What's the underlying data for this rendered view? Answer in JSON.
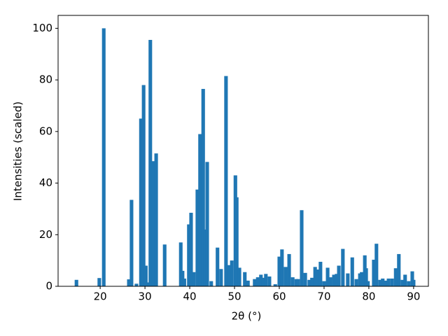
{
  "chart_data": {
    "type": "bar",
    "xlabel": "2θ (°)",
    "ylabel": "Intensities (scaled)",
    "color": "#1f77b4",
    "x": [
      14.7,
      19.8,
      20.8,
      26.4,
      27.0,
      28.1,
      29.1,
      29.7,
      30.2,
      30.6,
      31.2,
      31.9,
      32.5,
      34.4,
      38.0,
      38.4,
      38.8,
      39.8,
      40.3,
      40.9,
      41.7,
      42.3,
      43.0,
      43.4,
      43.9,
      44.8,
      46.2,
      47.0,
      48.1,
      48.8,
      49.4,
      50.2,
      50.5,
      51.1,
      52.3,
      53.0,
      54.5,
      55.2,
      55.9,
      56.4,
      57.0,
      57.8,
      59.1,
      60.0,
      60.6,
      61.4,
      62.2,
      63.0,
      63.8,
      64.2,
      65.0,
      65.8,
      66.7,
      67.3,
      68.0,
      68.6,
      69.2,
      70.0,
      70.8,
      71.4,
      72.2,
      72.8,
      73.3,
      74.2,
      75.3,
      76.3,
      77.2,
      78.0,
      78.4,
      79.1,
      79.4,
      79.8,
      81.1,
      81.7,
      82.5,
      83.1,
      83.8,
      84.4,
      85.2,
      86.0,
      86.7,
      87.5,
      88.1,
      88.9,
      89.7,
      90.0
    ],
    "values": [
      2.5,
      3.2,
      100,
      2.7,
      33.5,
      1,
      65,
      78,
      8,
      1.5,
      95.5,
      48.5,
      51.5,
      16.2,
      17,
      6,
      3,
      24,
      28.5,
      5.5,
      37.5,
      59,
      76.5,
      22,
      48.2,
      2,
      15,
      6.7,
      81.5,
      8.2,
      10,
      43,
      34.5,
      7.2,
      5.5,
      2.2,
      2.8,
      3.5,
      4.5,
      3.3,
      4.8,
      3.8,
      0.8,
      11.5,
      14.3,
      7.5,
      12.5,
      3.5,
      2.8,
      2.8,
      29.5,
      5.2,
      2.5,
      3.3,
      7.5,
      6.5,
      9.5,
      2,
      7.2,
      3.5,
      4.5,
      4.8,
      8,
      14.5,
      5,
      11.2,
      2.8,
      5,
      5.5,
      12,
      7,
      2,
      10.3,
      16.5,
      2.5,
      3,
      2.2,
      3,
      3,
      7,
      12.5,
      2.5,
      4.5,
      2,
      5.8,
      2.5
    ],
    "xlim": [
      10.6,
      93.3
    ],
    "ylim": [
      0,
      105
    ],
    "xticks": [
      20,
      30,
      40,
      50,
      60,
      70,
      80,
      90
    ],
    "yticks": [
      0,
      20,
      40,
      60,
      80,
      100
    ]
  }
}
